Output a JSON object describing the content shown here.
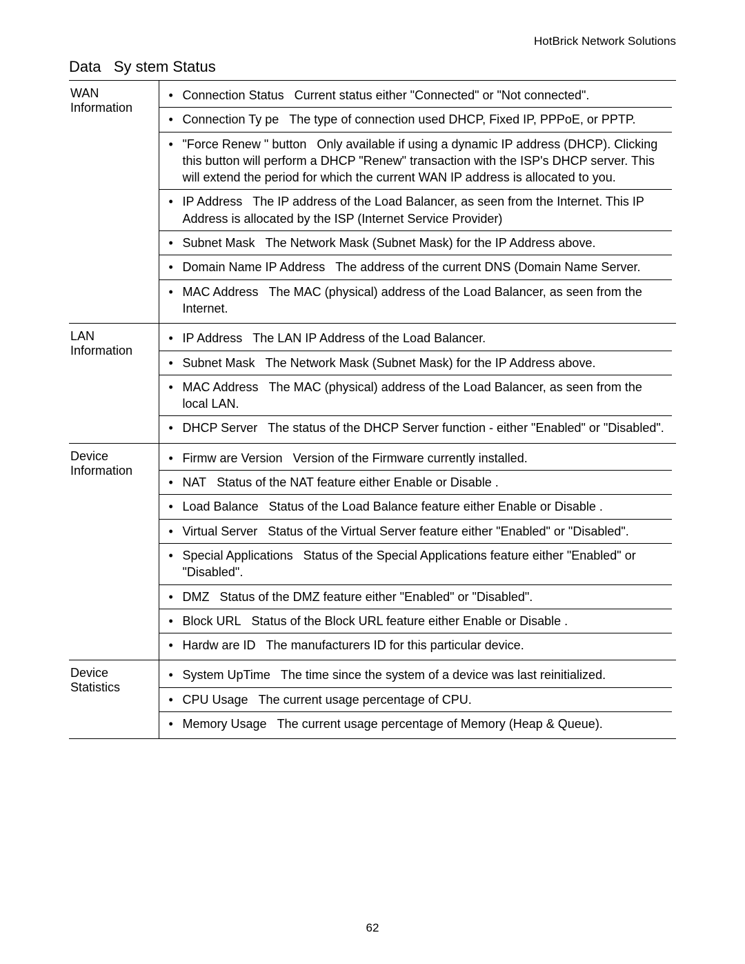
{
  "header": {
    "brand": "HotBrick Network Solutions"
  },
  "section": {
    "title_prefix": "Data",
    "title_main": "Sy stem Status"
  },
  "rows": [
    {
      "label": "WAN Information",
      "items": [
        {
          "term": "Connection Status",
          "desc": "Current status  either \"Connected\" or \"Not connected\"."
        },
        {
          "term": "Connection Ty pe",
          "desc": "The type of connection used  DHCP, Fixed IP, PPPoE, or PPTP."
        },
        {
          "term": "\"Force Renew \" button",
          "desc": "Only available if using a dynamic IP address (DHCP). Clicking this button will perform a DHCP \"Renew\" transaction with the ISP's DHCP server. This will extend the period for which the current WAN IP address is allocated to you."
        },
        {
          "term": "IP Address",
          "desc": "The IP address of the Load Balancer, as seen from the Internet. This IP Address is allocated by the ISP (Internet Service Provider)"
        },
        {
          "term": "Subnet Mask",
          "desc": "The Network Mask (Subnet Mask) for the IP Address above."
        },
        {
          "term": "Domain Name IP Address",
          "desc": "The address of the current DNS (Domain Name Server."
        },
        {
          "term": "MAC Address",
          "desc": "The MAC (physical) address of the Load Balancer, as seen from the Internet."
        }
      ]
    },
    {
      "label": "LAN Information",
      "items": [
        {
          "term": "IP Address",
          "desc": "The LAN IP Address of the Load Balancer."
        },
        {
          "term": "Subnet Mask",
          "desc": "The Network Mask (Subnet Mask) for the IP Address above."
        },
        {
          "term": "MAC Address",
          "desc": "The MAC (physical) address of the Load Balancer, as seen from the local LAN."
        },
        {
          "term": "DHCP Server",
          "desc": "The status of the DHCP Server function - either \"Enabled\" or \"Disabled\"."
        }
      ]
    },
    {
      "label": "Device Information",
      "items": [
        {
          "term": "Firmw are Version",
          "desc": "Version of the Firmware currently installed."
        },
        {
          "term": "NAT",
          "desc": "Status of the NAT feature  either Enable or Disable ."
        },
        {
          "term": "Load Balance",
          "desc": "Status of the  Load Balance feature  either Enable or Disable ."
        },
        {
          "term": "Virtual Server",
          "desc": "Status of the  Virtual Server feature  either \"Enabled\" or \"Disabled\"."
        },
        {
          "term": "Special Applications",
          "desc": "Status of the  Special Applications feature  either \"Enabled\" or \"Disabled\"."
        },
        {
          "term": "DMZ",
          "desc": "Status of the  DMZ feature  either \"Enabled\" or \"Disabled\"."
        },
        {
          "term": "Block URL",
          "desc": "Status of the  Block URL feature  either Enable or Disable ."
        },
        {
          "term": "Hardw are ID",
          "desc": "The manufacturers ID for this particular device."
        }
      ]
    },
    {
      "label": "Device Statistics",
      "items": [
        {
          "term": "System UpTime",
          "desc": "The time since the system of a device was last reinitialized."
        },
        {
          "term": "CPU Usage",
          "desc": "The current usage percentage of CPU."
        },
        {
          "term": "Memory Usage",
          "desc": "The current usage percentage of Memory (Heap & Queue)."
        }
      ]
    }
  ],
  "page_number": "62",
  "style": {
    "background_color": "#ffffff",
    "text_color": "#000000",
    "border_color": "#000000",
    "font_family": "Arial",
    "body_fontsize": 18,
    "title_fontsize": 22,
    "header_fontsize": 17
  }
}
